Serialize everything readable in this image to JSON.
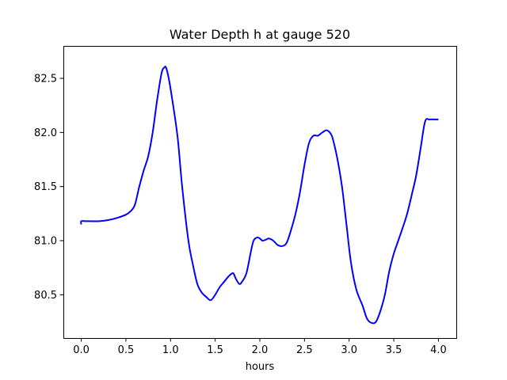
{
  "chart_data": {
    "type": "line",
    "title": "Water Depth h at gauge 520",
    "xlabel": "hours",
    "ylabel": "",
    "xlim": [
      -0.2,
      4.2
    ],
    "ylim": [
      80.1,
      82.8
    ],
    "xticks": [
      0.0,
      0.5,
      1.0,
      1.5,
      2.0,
      2.5,
      3.0,
      3.5,
      4.0
    ],
    "xtick_labels": [
      "0.0",
      "0.5",
      "1.0",
      "1.5",
      "2.0",
      "2.5",
      "3.0",
      "3.5",
      "4.0"
    ],
    "yticks": [
      80.5,
      81.0,
      81.5,
      82.0,
      82.5
    ],
    "ytick_labels": [
      "80.5",
      "81.0",
      "81.5",
      "82.0",
      "82.5"
    ],
    "grid": false,
    "series": [
      {
        "color": "#0000ff",
        "x": [
          0.0,
          0.0,
          0.05,
          0.1,
          0.2,
          0.3,
          0.4,
          0.5,
          0.55,
          0.6,
          0.65,
          0.7,
          0.75,
          0.8,
          0.85,
          0.9,
          0.93,
          0.95,
          0.98,
          1.02,
          1.08,
          1.13,
          1.2,
          1.25,
          1.3,
          1.35,
          1.4,
          1.45,
          1.5,
          1.55,
          1.6,
          1.65,
          1.7,
          1.73,
          1.77,
          1.8,
          1.85,
          1.9,
          1.93,
          1.97,
          2.0,
          2.03,
          2.07,
          2.1,
          2.15,
          2.2,
          2.25,
          2.3,
          2.35,
          2.4,
          2.45,
          2.5,
          2.55,
          2.6,
          2.65,
          2.7,
          2.75,
          2.8,
          2.83,
          2.87,
          2.92,
          2.97,
          3.02,
          3.08,
          3.15,
          3.2,
          3.25,
          3.3,
          3.35,
          3.4,
          3.45,
          3.5,
          3.55,
          3.6,
          3.65,
          3.7,
          3.75,
          3.8,
          3.85,
          3.9,
          3.95,
          4.0
        ],
        "values": [
          81.15,
          81.18,
          81.18,
          81.18,
          81.18,
          81.19,
          81.21,
          81.24,
          81.27,
          81.33,
          81.5,
          81.65,
          81.78,
          82.0,
          82.3,
          82.55,
          82.6,
          82.6,
          82.5,
          82.3,
          81.95,
          81.5,
          81.0,
          80.78,
          80.6,
          80.52,
          80.48,
          80.45,
          80.5,
          80.57,
          80.62,
          80.67,
          80.7,
          80.65,
          80.6,
          80.62,
          80.7,
          80.9,
          81.0,
          81.03,
          81.02,
          81.0,
          81.01,
          81.02,
          81.0,
          80.96,
          80.95,
          80.98,
          81.1,
          81.25,
          81.45,
          81.7,
          81.9,
          81.97,
          81.97,
          82.0,
          82.02,
          81.98,
          81.9,
          81.75,
          81.5,
          81.15,
          80.8,
          80.55,
          80.4,
          80.28,
          80.24,
          80.25,
          80.35,
          80.5,
          80.72,
          80.88,
          81.0,
          81.12,
          81.25,
          81.42,
          81.6,
          81.85,
          82.1,
          82.12,
          82.12,
          82.12
        ]
      }
    ]
  }
}
